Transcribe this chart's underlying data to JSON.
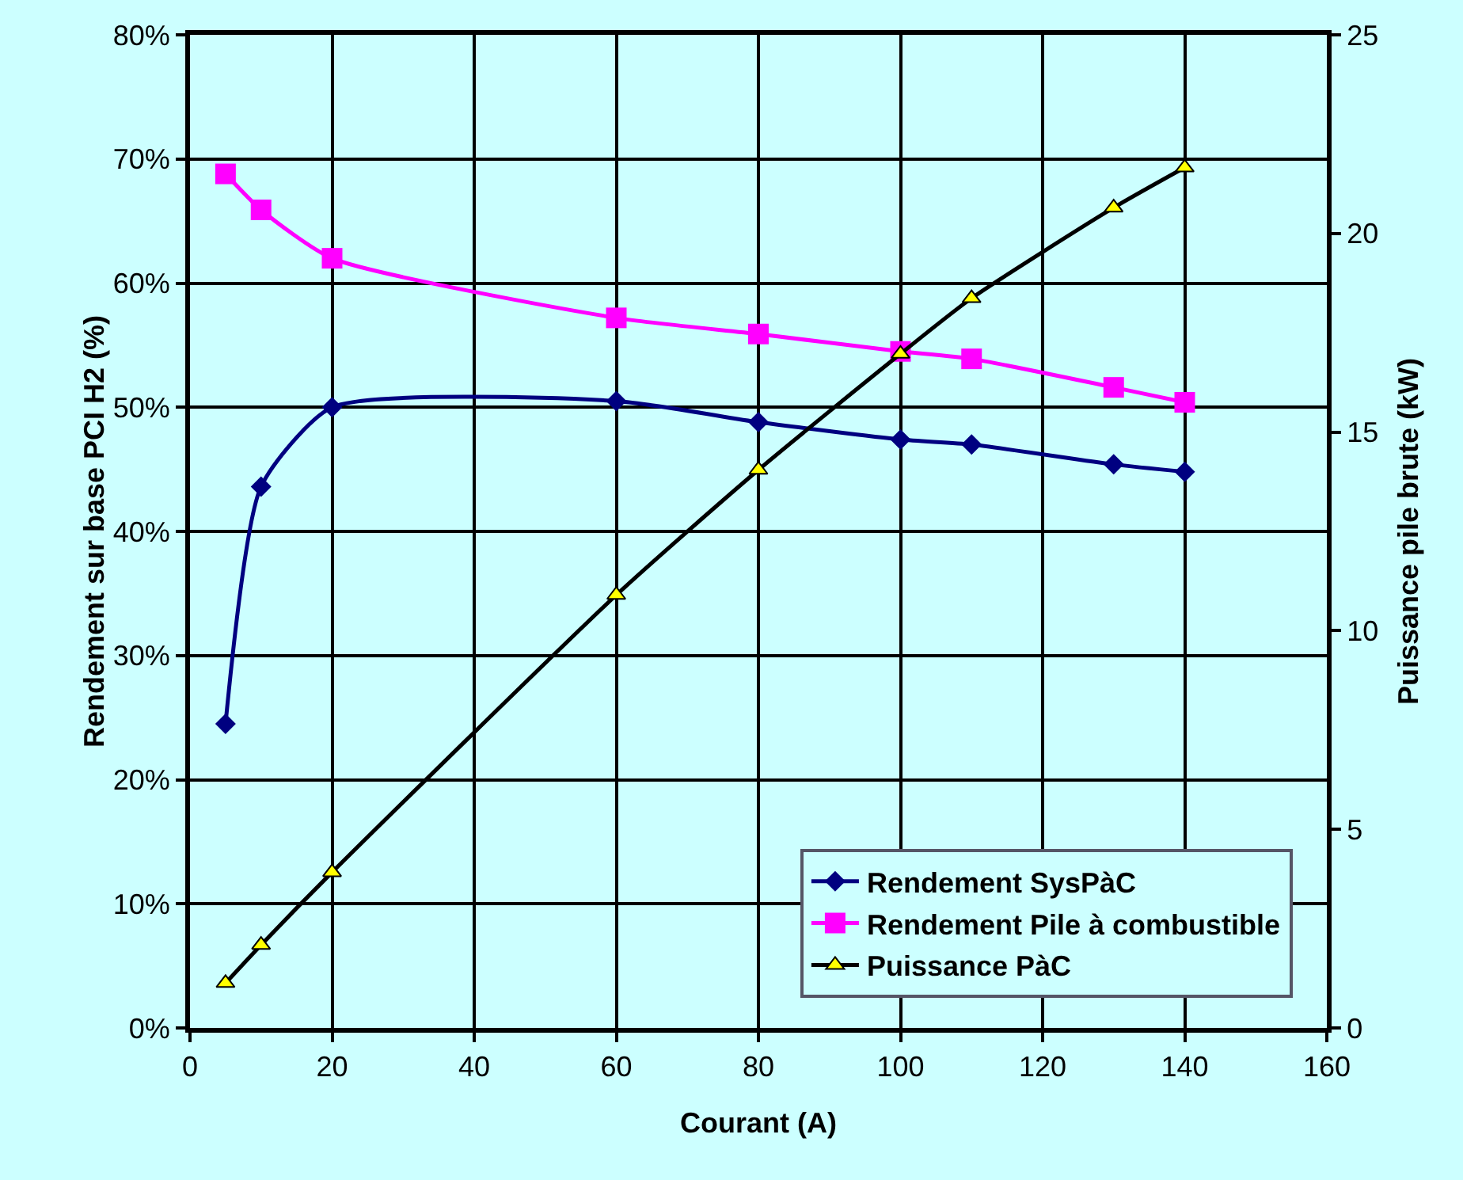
{
  "chart_data": {
    "type": "line",
    "xlabel": "Courant (A)",
    "ylabel": "Rendement sur base PCI H2 (%)",
    "y2label": "Puissance pile brute (kW)",
    "x": [
      5,
      10,
      20,
      60,
      80,
      100,
      110,
      130,
      140
    ],
    "series": [
      {
        "name": "Rendement SysPàC",
        "color": "#000080",
        "marker": "diamond",
        "values": [
          24.5,
          43.6,
          50.0,
          50.5,
          48.8,
          47.4,
          47.0,
          45.4,
          44.8
        ]
      },
      {
        "name": "Rendement Pile à combustible",
        "color": "#ff00ff",
        "marker": "square",
        "values": [
          68.8,
          65.9,
          62.0,
          57.2,
          55.9,
          54.5,
          53.9,
          51.6,
          50.4
        ]
      },
      {
        "name": "Puissance PàC",
        "color": "#000000",
        "marker": "triangle",
        "axis": "y2",
        "values": [
          1.13,
          2.09,
          3.92,
          10.9,
          14.05,
          16.97,
          18.37,
          20.65,
          21.66
        ]
      }
    ],
    "xlim": [
      0,
      160
    ],
    "xticks": [
      0,
      20,
      40,
      60,
      80,
      100,
      120,
      140,
      160
    ],
    "ylim": [
      0,
      80
    ],
    "yticks": [
      {
        "value": 0,
        "label": "0%"
      },
      {
        "value": 10,
        "label": "10%"
      },
      {
        "value": 20,
        "label": "20%"
      },
      {
        "value": 30,
        "label": "30%"
      },
      {
        "value": 40,
        "label": "40%"
      },
      {
        "value": 50,
        "label": "50%"
      },
      {
        "value": 60,
        "label": "60%"
      },
      {
        "value": 70,
        "label": "70%"
      },
      {
        "value": 80,
        "label": "80%"
      }
    ],
    "y2lim": [
      0,
      25
    ],
    "y2ticks": [
      0,
      5,
      10,
      15,
      20,
      25
    ],
    "grid": true,
    "legend": "bottom right"
  }
}
